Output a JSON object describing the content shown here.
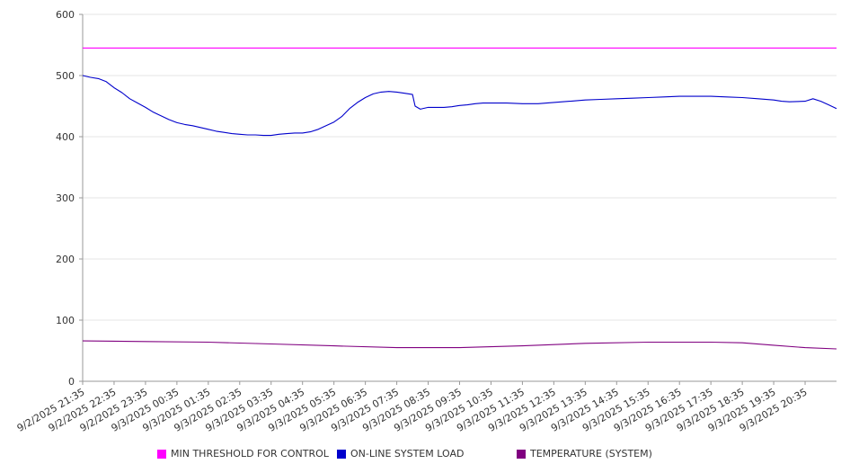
{
  "chart_data": {
    "type": "line",
    "ylim": [
      0,
      600
    ],
    "y_ticks": [
      0,
      100,
      200,
      300,
      400,
      500,
      600
    ],
    "grid": "horizontal",
    "legend_position": "bottom",
    "x_start": "9/2/2025 21:35",
    "x_end": "9/3/2025 21:35",
    "x_tick_labels": [
      "9/2/2025 21:35",
      "9/2/2025 22:35",
      "9/2/2025 23:35",
      "9/3/2025 00:35",
      "9/3/2025 01:35",
      "9/3/2025 02:35",
      "9/3/2025 03:35",
      "9/3/2025 04:35",
      "9/3/2025 05:35",
      "9/3/2025 06:35",
      "9/3/2025 07:35",
      "9/3/2025 08:35",
      "9/3/2025 09:35",
      "9/3/2025 10:35",
      "9/3/2025 11:35",
      "9/3/2025 12:35",
      "9/3/2025 13:35",
      "9/3/2025 14:35",
      "9/3/2025 15:35",
      "9/3/2025 16:35",
      "9/3/2025 17:35",
      "9/3/2025 18:35",
      "9/3/2025 19:35",
      "9/3/2025 20:35"
    ],
    "series": [
      {
        "name": "MIN THRESHOLD FOR CONTROL",
        "color": "#ff00ff",
        "x": [
          "9/2/2025 21:35",
          "9/3/2025 21:35"
        ],
        "y": [
          545,
          545
        ]
      },
      {
        "name": "ON-LINE SYSTEM LOAD",
        "color": "#0000cc",
        "x": [
          "9/2/2025 21:35",
          "9/2/2025 21:50",
          "9/2/2025 22:05",
          "9/2/2025 22:20",
          "9/2/2025 22:35",
          "9/2/2025 22:50",
          "9/2/2025 23:05",
          "9/2/2025 23:20",
          "9/2/2025 23:35",
          "9/2/2025 23:50",
          "9/3/2025 00:05",
          "9/3/2025 00:20",
          "9/3/2025 00:35",
          "9/3/2025 00:50",
          "9/3/2025 01:05",
          "9/3/2025 01:20",
          "9/3/2025 01:35",
          "9/3/2025 01:50",
          "9/3/2025 02:05",
          "9/3/2025 02:20",
          "9/3/2025 02:35",
          "9/3/2025 02:50",
          "9/3/2025 03:05",
          "9/3/2025 03:20",
          "9/3/2025 03:35",
          "9/3/2025 03:50",
          "9/3/2025 04:05",
          "9/3/2025 04:20",
          "9/3/2025 04:35",
          "9/3/2025 04:50",
          "9/3/2025 05:05",
          "9/3/2025 05:20",
          "9/3/2025 05:35",
          "9/3/2025 05:50",
          "9/3/2025 06:05",
          "9/3/2025 06:20",
          "9/3/2025 06:35",
          "9/3/2025 06:50",
          "9/3/2025 07:05",
          "9/3/2025 07:20",
          "9/3/2025 07:35",
          "9/3/2025 07:50",
          "9/3/2025 08:05",
          "9/3/2025 08:10",
          "9/3/2025 08:20",
          "9/3/2025 08:35",
          "9/3/2025 08:50",
          "9/3/2025 09:05",
          "9/3/2025 09:20",
          "9/3/2025 09:35",
          "9/3/2025 09:50",
          "9/3/2025 10:05",
          "9/3/2025 10:20",
          "9/3/2025 10:35",
          "9/3/2025 11:05",
          "9/3/2025 11:35",
          "9/3/2025 12:05",
          "9/3/2025 12:35",
          "9/3/2025 13:05",
          "9/3/2025 13:35",
          "9/3/2025 14:05",
          "9/3/2025 14:35",
          "9/3/2025 15:05",
          "9/3/2025 15:35",
          "9/3/2025 16:05",
          "9/3/2025 16:35",
          "9/3/2025 17:05",
          "9/3/2025 17:35",
          "9/3/2025 18:05",
          "9/3/2025 18:35",
          "9/3/2025 19:05",
          "9/3/2025 19:35",
          "9/3/2025 19:50",
          "9/3/2025 20:05",
          "9/3/2025 20:35",
          "9/3/2025 20:50",
          "9/3/2025 21:05",
          "9/3/2025 21:20",
          "9/3/2025 21:35"
        ],
        "y": [
          500,
          497,
          495,
          490,
          480,
          472,
          462,
          455,
          448,
          440,
          434,
          428,
          423,
          420,
          418,
          415,
          412,
          409,
          407,
          405,
          404,
          403,
          403,
          402,
          402,
          404,
          405,
          406,
          406,
          408,
          412,
          418,
          424,
          433,
          446,
          456,
          464,
          470,
          473,
          474,
          473,
          471,
          469,
          450,
          445,
          448,
          448,
          448,
          449,
          451,
          452,
          454,
          455,
          455,
          455,
          454,
          454,
          456,
          458,
          460,
          461,
          462,
          463,
          464,
          465,
          466,
          466,
          466,
          465,
          464,
          462,
          460,
          458,
          457,
          458,
          462,
          458,
          452,
          446
        ]
      },
      {
        "name": "TEMPERATURE (SYSTEM)",
        "color": "#800080",
        "x": [
          "9/2/2025 21:35",
          "9/2/2025 23:35",
          "9/3/2025 01:35",
          "9/3/2025 03:35",
          "9/3/2025 05:35",
          "9/3/2025 07:35",
          "9/3/2025 09:35",
          "9/3/2025 11:35",
          "9/3/2025 13:35",
          "9/3/2025 15:35",
          "9/3/2025 17:35",
          "9/3/2025 18:35",
          "9/3/2025 19:35",
          "9/3/2025 20:35",
          "9/3/2025 21:35"
        ],
        "y": [
          66,
          65,
          64,
          61,
          58,
          55,
          55,
          58,
          62,
          64,
          64,
          63,
          59,
          55,
          53
        ]
      }
    ]
  }
}
